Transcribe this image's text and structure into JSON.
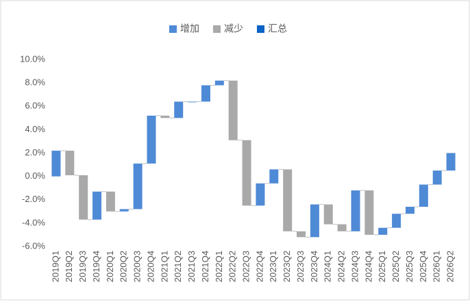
{
  "chart_data": {
    "type": "waterfall",
    "series": [
      {
        "name": "增加",
        "color": "#4f8ad6"
      },
      {
        "name": "减少",
        "color": "#a9a9a9"
      },
      {
        "name": "汇总",
        "color": "#0b63c6"
      }
    ],
    "categories": [
      "2019Q1",
      "2019Q2",
      "2019Q3",
      "2019Q4",
      "2020Q1",
      "2020Q2",
      "2020Q3",
      "2020Q4",
      "2021Q1",
      "2021Q2",
      "2021Q3",
      "2021Q4",
      "2022Q1",
      "2022Q2",
      "2022Q3",
      "2022Q4",
      "2023Q1",
      "2023Q2",
      "2023Q3",
      "2023Q4",
      "2024Q1",
      "2024Q2",
      "2024Q3",
      "2024Q4",
      "2025Q1",
      "2025Q2",
      "2025Q3",
      "2025Q4",
      "2026Q1",
      "2026Q2"
    ],
    "values": [
      2.2,
      -2.1,
      -3.8,
      2.4,
      -1.7,
      0.2,
      3.9,
      4.1,
      -0.2,
      1.4,
      0,
      1.4,
      0.4,
      -5.1,
      -5.6,
      1.9,
      1.2,
      -5.3,
      -0.5,
      2.8,
      -1.7,
      -0.6,
      3.5,
      -3.8,
      0.6,
      1.2,
      0.6,
      1.9,
      1.2,
      1.5
    ],
    "ylim": [
      -6,
      10
    ],
    "yticks": [
      {
        "value": -6,
        "label": "-6.0%"
      },
      {
        "value": -4,
        "label": "-4.0%"
      },
      {
        "value": -2,
        "label": "-2.0%"
      },
      {
        "value": 0,
        "label": "0.0%"
      },
      {
        "value": 2,
        "label": "2.0%"
      },
      {
        "value": 4,
        "label": "4.0%"
      },
      {
        "value": 6,
        "label": "6.0%"
      },
      {
        "value": 8,
        "label": "8.0%"
      },
      {
        "value": 10,
        "label": "10.0%"
      }
    ],
    "legend": "top"
  }
}
